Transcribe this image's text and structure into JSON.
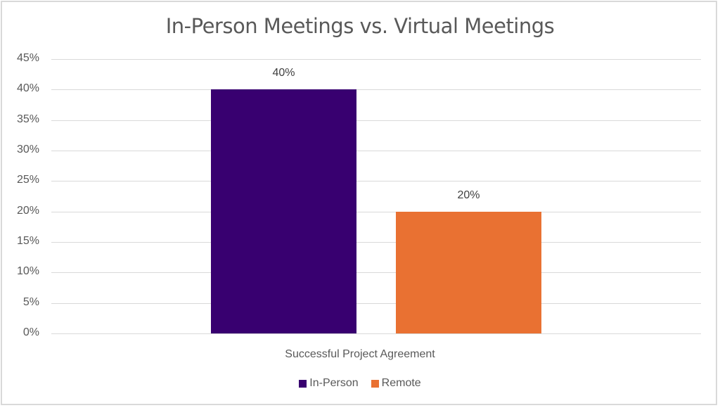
{
  "chart_data": {
    "type": "bar",
    "title": "In-Person Meetings vs. Virtual Meetings",
    "categories": [
      "Successful Project Agreement"
    ],
    "series": [
      {
        "name": "In-Person",
        "values": [
          40
        ],
        "color": "#380070",
        "label": "40%"
      },
      {
        "name": "Remote",
        "values": [
          20
        ],
        "color": "#e97132",
        "label": "20%"
      }
    ],
    "xlabel": "",
    "ylabel": "",
    "ylim": [
      0,
      45
    ],
    "yticks": [
      "0%",
      "5%",
      "10%",
      "15%",
      "20%",
      "25%",
      "30%",
      "35%",
      "40%",
      "45%"
    ],
    "grid": true,
    "legend_position": "bottom"
  },
  "labels": {
    "title": "In-Person Meetings vs. Virtual Meetings",
    "category": "Successful Project Agreement",
    "legend": [
      "In-Person",
      "Remote"
    ]
  }
}
